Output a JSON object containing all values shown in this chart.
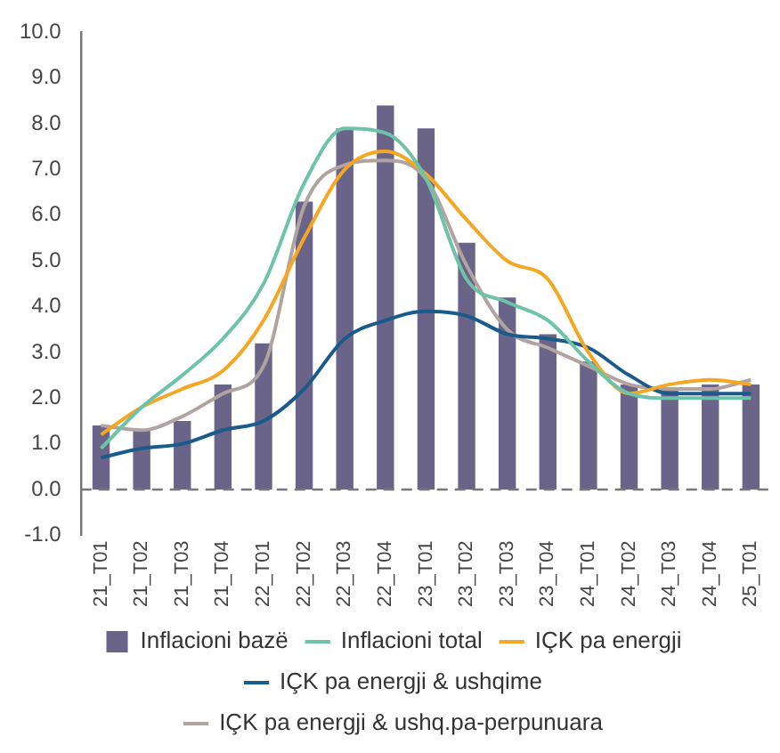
{
  "chart_data": {
    "type": "bar",
    "categories": [
      "21_T01",
      "21_T02",
      "21_T03",
      "21_T04",
      "22_T01",
      "22_T02",
      "22_T03",
      "22_T04",
      "23_T01",
      "23_T02",
      "23_T03",
      "23_T04",
      "24_T01",
      "24_T02",
      "24_T03",
      "24_T04",
      "25_T01"
    ],
    "series": [
      {
        "name": "Inflacioni bazë",
        "color": "#6b6489",
        "values": [
          1.4,
          1.3,
          1.5,
          2.3,
          3.2,
          6.3,
          7.9,
          8.4,
          7.9,
          5.4,
          4.2,
          3.4,
          2.8,
          2.3,
          2.2,
          2.3,
          2.3
        ]
      },
      {
        "name": "Inflacioni total",
        "type": "line",
        "color": "#6cc3a8",
        "values": [
          0.9,
          1.8,
          2.5,
          3.3,
          4.5,
          6.7,
          7.9,
          7.8,
          6.8,
          4.6,
          4.1,
          3.7,
          2.8,
          2.1,
          2.0,
          2.0,
          2.0
        ]
      },
      {
        "name": "IÇK pa energji",
        "type": "line",
        "color": "#f5a623",
        "values": [
          1.2,
          1.8,
          2.2,
          2.6,
          3.7,
          5.5,
          7.0,
          7.4,
          6.9,
          5.9,
          5.0,
          4.6,
          3.0,
          2.1,
          2.3,
          2.4,
          2.3
        ]
      },
      {
        "name": "IÇK pa energji & ushqime",
        "type": "line",
        "color": "#1a5a8c",
        "values": [
          0.7,
          0.9,
          1.0,
          1.3,
          1.5,
          2.2,
          3.3,
          3.7,
          3.9,
          3.8,
          3.4,
          3.3,
          3.1,
          2.5,
          2.1,
          2.1,
          2.1
        ]
      },
      {
        "name": "IÇK pa energji & ushq.pa-perpunuara",
        "type": "line",
        "color": "#b0a3a0",
        "values": [
          1.4,
          1.3,
          1.6,
          2.1,
          2.7,
          6.2,
          7.1,
          7.2,
          6.8,
          4.9,
          3.5,
          3.1,
          2.7,
          2.3,
          2.2,
          2.2,
          2.4
        ]
      }
    ],
    "ylim": [
      -1,
      10
    ],
    "yticks": [
      {
        "value": -1,
        "label": "-1.0"
      },
      {
        "value": 0,
        "label": "0.0"
      },
      {
        "value": 1,
        "label": "1.0"
      },
      {
        "value": 2,
        "label": "2.0"
      },
      {
        "value": 3,
        "label": "3.0"
      },
      {
        "value": 4,
        "label": "4.0"
      },
      {
        "value": 5,
        "label": "5.0"
      },
      {
        "value": 6,
        "label": "6.0"
      },
      {
        "value": 7,
        "label": "7.0"
      },
      {
        "value": 8,
        "label": "8.0"
      },
      {
        "value": 9,
        "label": "9.0"
      },
      {
        "value": 10,
        "label": "10.0"
      }
    ],
    "ref_lines": [
      {
        "axis": "y",
        "value": 0,
        "line_style": "dashed",
        "color": "#777777"
      }
    ],
    "grid": false,
    "legend": "bottom",
    "marker": "none",
    "line_style": "solid"
  }
}
